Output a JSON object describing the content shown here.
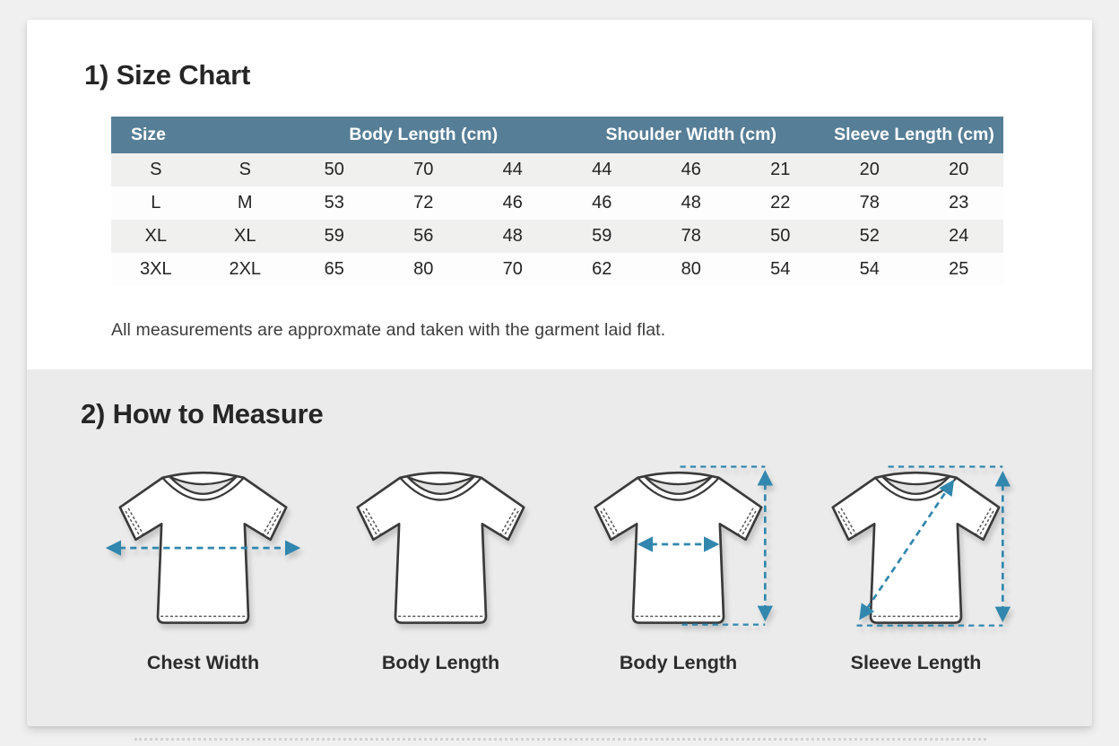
{
  "theme": {
    "arrow_color": "#3187ae",
    "header_bg": "#567e97",
    "header_fg": "#ffffff",
    "stripe_color": "#f0f0ef",
    "section1_bg": "#ffffff",
    "section2_bg": "#ebebeb"
  },
  "size_chart": {
    "title": "1) Size Chart",
    "note": "All measurements are approxmate and taken with the garment laid flat.",
    "table": {
      "headers": [
        {
          "label": "Size",
          "span": 2
        },
        {
          "label": "Body Length (cm)",
          "span": 3
        },
        {
          "label": "Shoulder Width (cm)",
          "span": 3
        },
        {
          "label": "Sleeve Length (cm)",
          "span": 2
        }
      ],
      "rows": [
        [
          "S",
          "S",
          "50",
          "70",
          "44",
          "44",
          "46",
          "21",
          "20",
          "20"
        ],
        [
          "L",
          "M",
          "53",
          "72",
          "46",
          "46",
          "48",
          "22",
          "78",
          "23"
        ],
        [
          "XL",
          "XL",
          "59",
          "56",
          "48",
          "59",
          "78",
          "50",
          "52",
          "24"
        ],
        [
          "3XL",
          "2XL",
          "65",
          "80",
          "70",
          "62",
          "80",
          "54",
          "54",
          "25"
        ]
      ]
    }
  },
  "how_to_measure": {
    "title": "2) How to Measure",
    "items": [
      {
        "label": "Chest Width",
        "arrow": "horizontal-chest-arrow"
      },
      {
        "label": "Body Length",
        "arrow": "none"
      },
      {
        "label": "Body Length",
        "arrow": "chest-and-vertical-arrows"
      },
      {
        "label": "Sleeve Length",
        "arrow": "diagonal-and-vertical-arrows"
      }
    ]
  }
}
